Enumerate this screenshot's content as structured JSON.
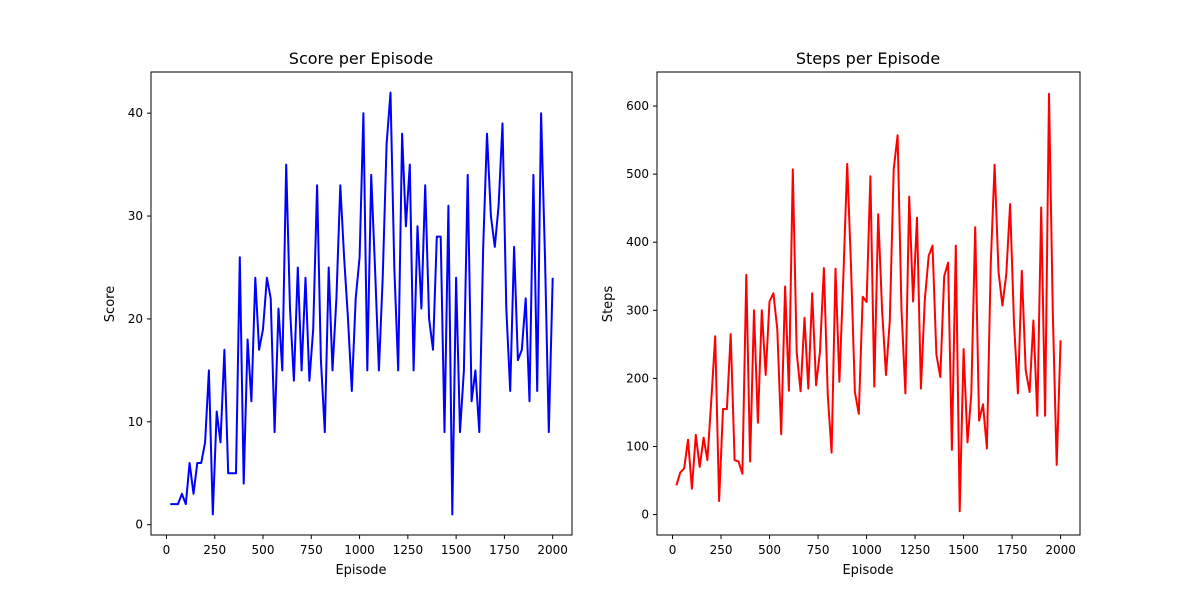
{
  "chart_data": [
    {
      "type": "line",
      "title": "Score per Episode",
      "xlabel": "Episode",
      "ylabel": "Score",
      "xlim": [
        -80,
        2100
      ],
      "ylim": [
        -1,
        44
      ],
      "xticks": [
        0,
        250,
        500,
        750,
        1000,
        1250,
        1500,
        1750,
        2000
      ],
      "yticks": [
        0,
        10,
        20,
        30,
        40
      ],
      "color": "#0000ff",
      "grid": false,
      "x": [
        20,
        40,
        60,
        80,
        100,
        120,
        140,
        160,
        180,
        200,
        220,
        240,
        260,
        280,
        300,
        320,
        340,
        360,
        380,
        400,
        420,
        440,
        460,
        480,
        500,
        520,
        540,
        560,
        580,
        600,
        620,
        640,
        660,
        680,
        700,
        720,
        740,
        760,
        780,
        800,
        820,
        840,
        860,
        880,
        900,
        920,
        940,
        960,
        980,
        1000,
        1020,
        1040,
        1060,
        1080,
        1100,
        1120,
        1140,
        1160,
        1180,
        1200,
        1220,
        1240,
        1260,
        1280,
        1300,
        1320,
        1340,
        1360,
        1380,
        1400,
        1420,
        1440,
        1460,
        1480,
        1500,
        1520,
        1540,
        1560,
        1580,
        1600,
        1620,
        1640,
        1660,
        1680,
        1700,
        1720,
        1740,
        1760,
        1780,
        1800,
        1820,
        1840,
        1860,
        1880,
        1900,
        1920,
        1940,
        1960,
        1980,
        2000
      ],
      "values": [
        2,
        2,
        2,
        3,
        2,
        6,
        3,
        6,
        6,
        8,
        15,
        1,
        11,
        8,
        17,
        5,
        5,
        5,
        26,
        4,
        18,
        12,
        24,
        17,
        19,
        24,
        22,
        9,
        21,
        15,
        35,
        21,
        14,
        25,
        15,
        24,
        14,
        19,
        33,
        16,
        9,
        25,
        15,
        22,
        33,
        26,
        20,
        13,
        22,
        26,
        40,
        15,
        34,
        25,
        15,
        24,
        37,
        42,
        25,
        15,
        38,
        29,
        35,
        15,
        29,
        21,
        33,
        20,
        17,
        28,
        28,
        9,
        31,
        1,
        24,
        9,
        15,
        34,
        12,
        15,
        9,
        27,
        38,
        30,
        27,
        31,
        39,
        21,
        13,
        27,
        16,
        17,
        22,
        12,
        34,
        13,
        40,
        26,
        9,
        24
      ]
    },
    {
      "type": "line",
      "title": "Steps per Episode",
      "xlabel": "Episode",
      "ylabel": "Steps",
      "xlim": [
        -80,
        2100
      ],
      "ylim": [
        -30,
        650
      ],
      "xticks": [
        0,
        250,
        500,
        750,
        1000,
        1250,
        1500,
        1750,
        2000
      ],
      "yticks": [
        0,
        100,
        200,
        300,
        400,
        500,
        600
      ],
      "color": "#ff0000",
      "grid": false,
      "x": [
        20,
        40,
        60,
        80,
        100,
        120,
        140,
        160,
        180,
        200,
        220,
        240,
        260,
        280,
        300,
        320,
        340,
        360,
        380,
        400,
        420,
        440,
        460,
        480,
        500,
        520,
        540,
        560,
        580,
        600,
        620,
        640,
        660,
        680,
        700,
        720,
        740,
        760,
        780,
        800,
        820,
        840,
        860,
        880,
        900,
        920,
        940,
        960,
        980,
        1000,
        1020,
        1040,
        1060,
        1080,
        1100,
        1120,
        1140,
        1160,
        1180,
        1200,
        1220,
        1240,
        1260,
        1280,
        1300,
        1320,
        1340,
        1360,
        1380,
        1400,
        1420,
        1440,
        1460,
        1480,
        1500,
        1520,
        1540,
        1560,
        1580,
        1600,
        1620,
        1640,
        1660,
        1680,
        1700,
        1720,
        1740,
        1760,
        1780,
        1800,
        1820,
        1840,
        1860,
        1880,
        1900,
        1920,
        1940,
        1960,
        1980,
        2000
      ],
      "values": [
        43,
        62,
        68,
        110,
        38,
        117,
        70,
        113,
        80,
        168,
        262,
        20,
        155,
        155,
        265,
        80,
        78,
        60,
        352,
        78,
        300,
        135,
        300,
        205,
        313,
        325,
        272,
        118,
        335,
        182,
        507,
        238,
        181,
        289,
        185,
        325,
        190,
        240,
        362,
        175,
        91,
        361,
        195,
        347,
        515,
        365,
        180,
        148,
        320,
        312,
        497,
        188,
        441,
        300,
        205,
        285,
        507,
        557,
        300,
        178,
        467,
        313,
        436,
        185,
        315,
        380,
        395,
        235,
        202,
        350,
        370,
        95,
        395,
        5,
        243,
        106,
        177,
        422,
        138,
        162,
        97,
        366,
        514,
        357,
        307,
        353,
        456,
        282,
        178,
        358,
        212,
        180,
        285,
        145,
        451,
        145,
        618,
        297,
        73,
        256
      ]
    }
  ]
}
